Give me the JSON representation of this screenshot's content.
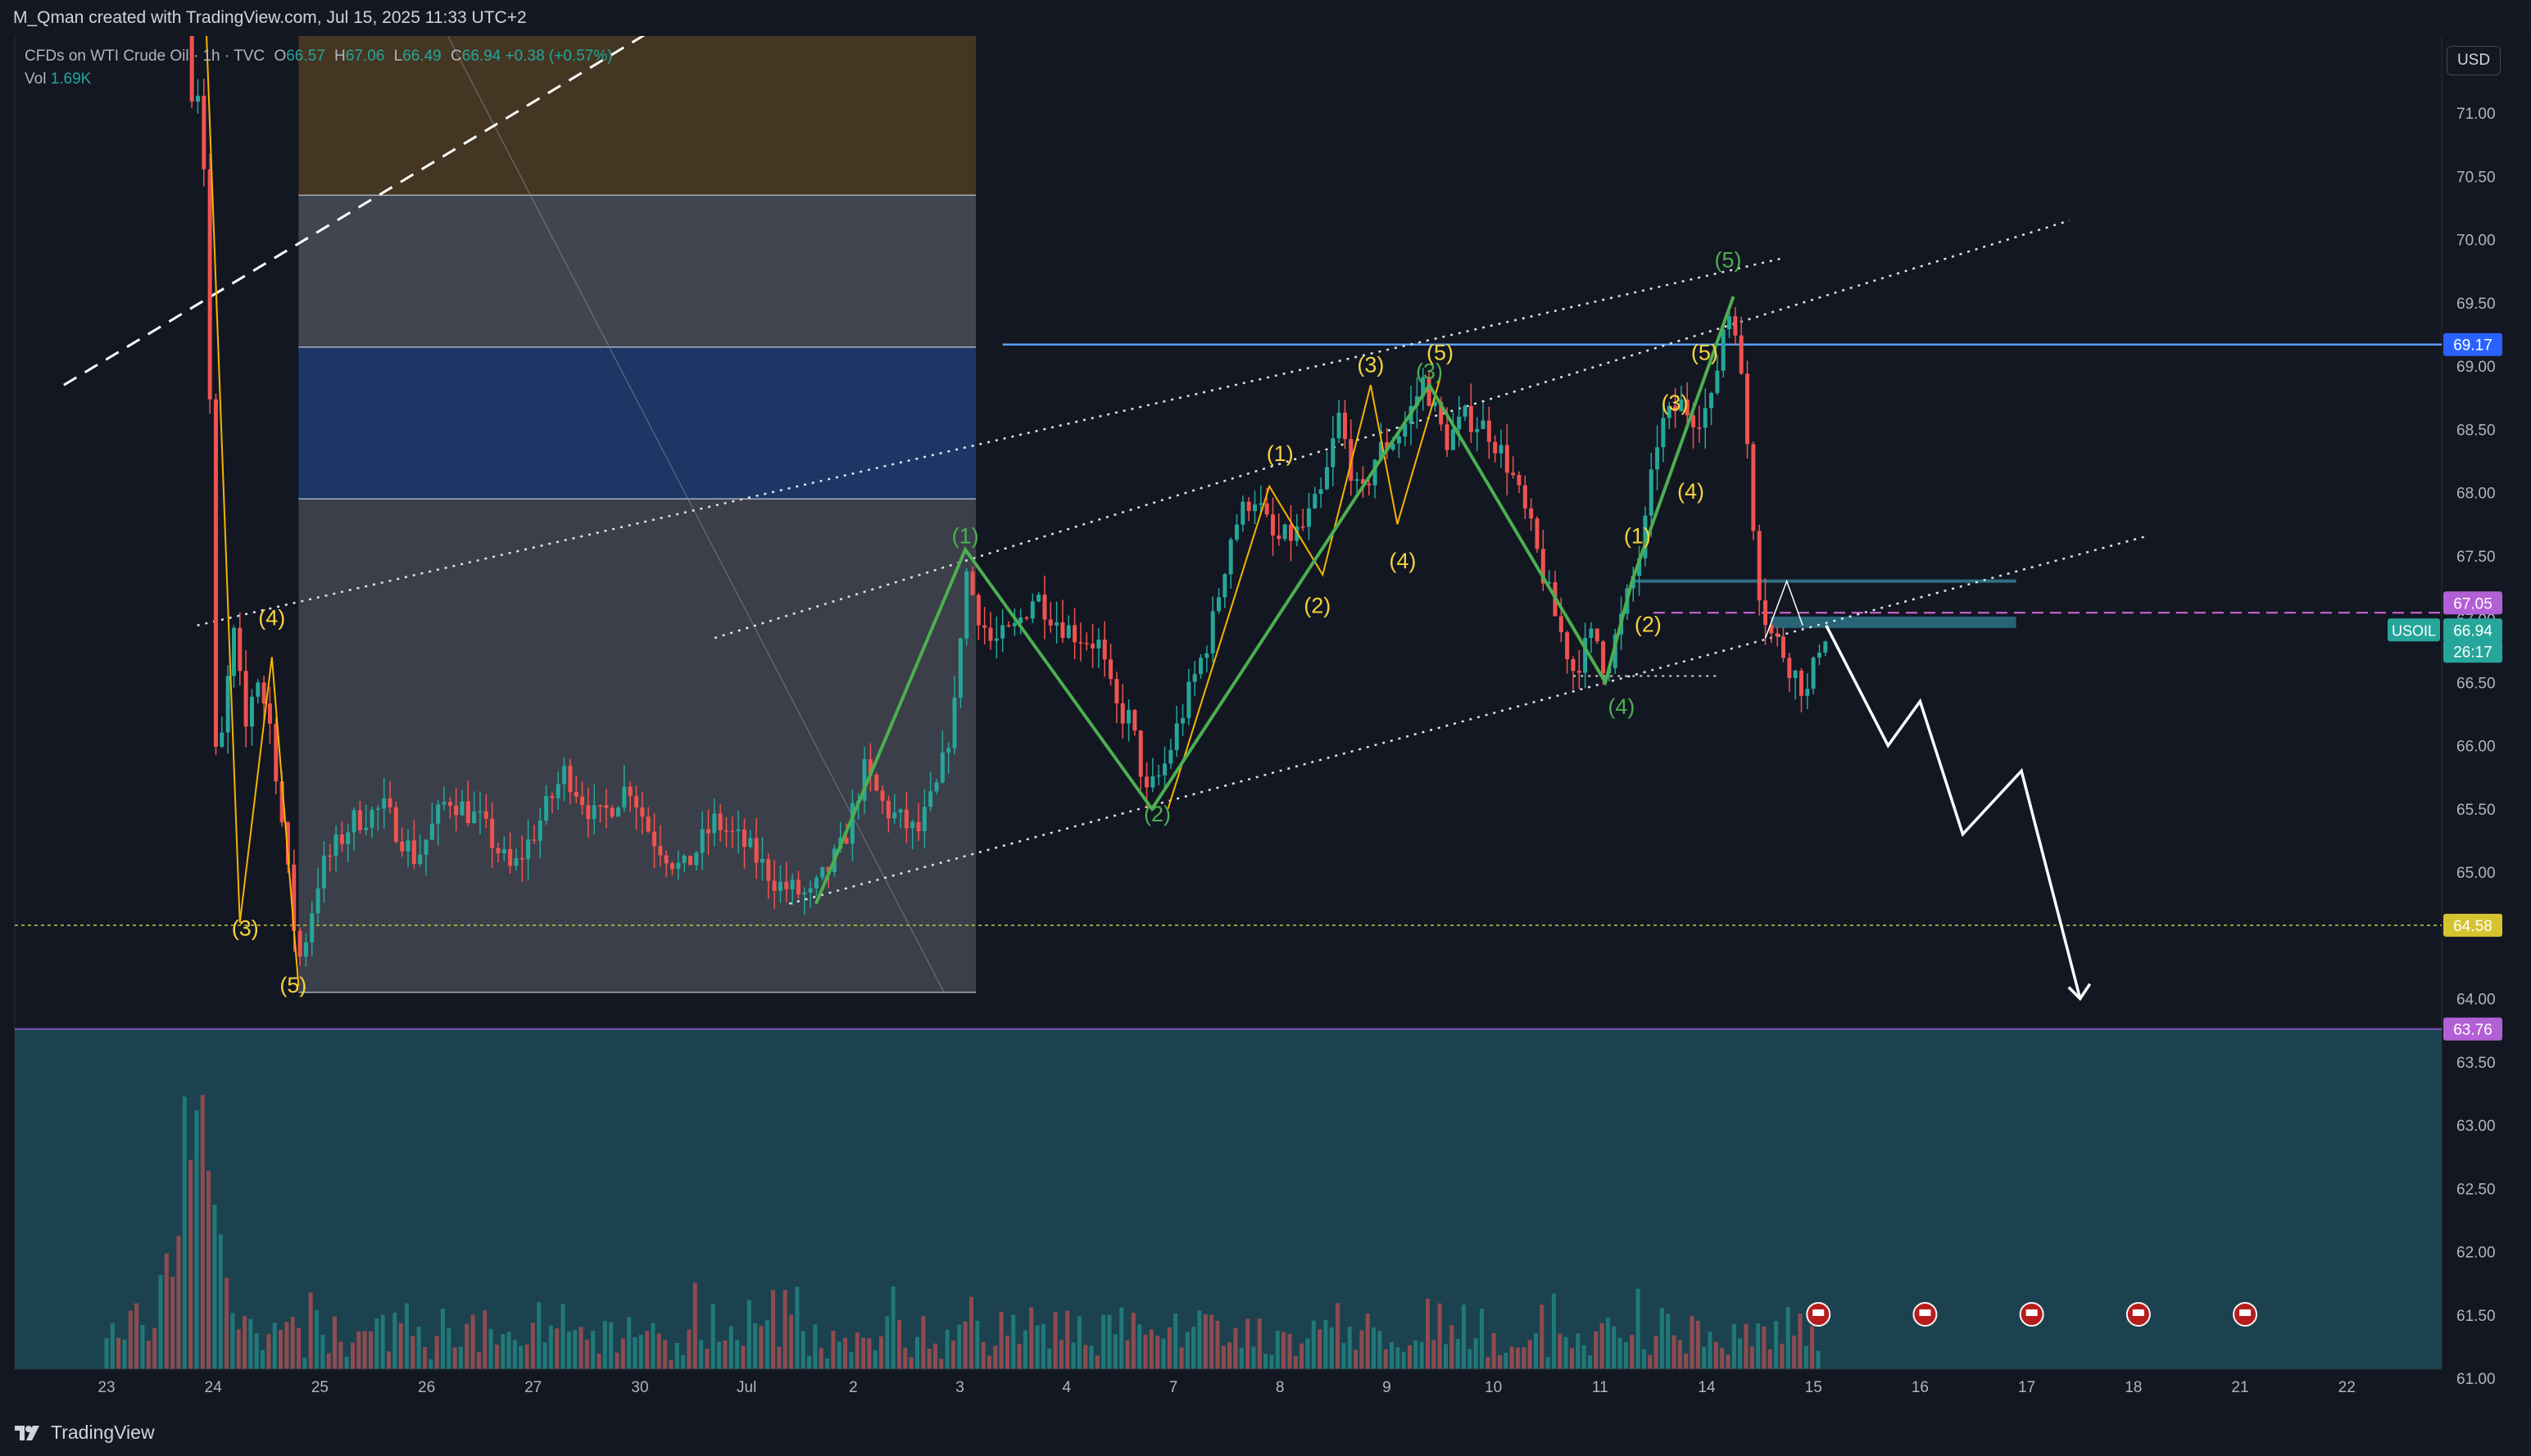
{
  "header": {
    "credit": "M_Qman created with TradingView.com, Jul 15, 2025 11:33 UTC+2"
  },
  "legend": {
    "symbol": "CFDs on WTI Crude Oil · 1h · TVC",
    "open_label": "O",
    "open": "66.57",
    "high_label": "H",
    "high": "67.06",
    "low_label": "L",
    "low": "66.49",
    "close_label": "C",
    "close": "66.94",
    "change": "+0.38 (+0.57%)",
    "vol_label": "Vol",
    "vol": "1.69K"
  },
  "currency_button": "USD",
  "footer": {
    "brand": "TradingView"
  },
  "colors": {
    "background": "#131722",
    "up": "#26a69a",
    "down": "#ef5350",
    "wave_green": "#4caf50",
    "wave_yellow": "#f5d33f",
    "resistance": "#5b9cf6",
    "volume_zone": "#1f4a57",
    "badge_purple": "#b360d6"
  },
  "chart_data": {
    "type": "candlestick",
    "symbol": "USOIL",
    "timeframe": "1h",
    "y_range": [
      60.9,
      71.3
    ],
    "y_ticks": [
      "71.00",
      "70.50",
      "70.00",
      "69.50",
      "69.00",
      "68.50",
      "68.00",
      "67.50",
      "67.00",
      "66.50",
      "66.00",
      "65.50",
      "65.00",
      "64.00",
      "63.50",
      "63.00",
      "62.50",
      "62.00",
      "61.50",
      "61.00"
    ],
    "x_ticks": [
      {
        "label": "23",
        "day": 0
      },
      {
        "label": "24",
        "day": 1
      },
      {
        "label": "25",
        "day": 2
      },
      {
        "label": "26",
        "day": 3
      },
      {
        "label": "27",
        "day": 4
      },
      {
        "label": "30",
        "day": 5
      },
      {
        "label": "Jul",
        "day": 6
      },
      {
        "label": "2",
        "day": 7
      },
      {
        "label": "3",
        "day": 8
      },
      {
        "label": "4",
        "day": 9
      },
      {
        "label": "7",
        "day": 10
      },
      {
        "label": "8",
        "day": 11
      },
      {
        "label": "9",
        "day": 12
      },
      {
        "label": "10",
        "day": 13
      },
      {
        "label": "11",
        "day": 14
      },
      {
        "label": "14",
        "day": 15
      },
      {
        "label": "15",
        "day": 16
      },
      {
        "label": "16",
        "day": 17
      },
      {
        "label": "17",
        "day": 18
      },
      {
        "label": "18",
        "day": 19
      },
      {
        "label": "21",
        "day": 20
      },
      {
        "label": "22",
        "day": 21
      }
    ],
    "price_path": [
      [
        0.8,
        72.0
      ],
      [
        0.92,
        70.5
      ],
      [
        1.0,
        67.6
      ],
      [
        1.03,
        65.6
      ],
      [
        1.12,
        66.4
      ],
      [
        1.2,
        66.9
      ],
      [
        1.3,
        66.1
      ],
      [
        1.4,
        66.6
      ],
      [
        1.55,
        66.1
      ],
      [
        1.75,
        64.6
      ],
      [
        1.82,
        64.3
      ],
      [
        2.0,
        65.0
      ],
      [
        2.3,
        65.4
      ],
      [
        2.6,
        65.5
      ],
      [
        2.9,
        65.1
      ],
      [
        3.2,
        65.6
      ],
      [
        3.5,
        65.4
      ],
      [
        3.8,
        65.0
      ],
      [
        4.0,
        65.3
      ],
      [
        4.3,
        65.8
      ],
      [
        4.6,
        65.4
      ],
      [
        4.9,
        65.7
      ],
      [
        5.1,
        65.3
      ],
      [
        5.4,
        65.0
      ],
      [
        5.7,
        65.4
      ],
      [
        6.0,
        65.2
      ],
      [
        6.3,
        64.9
      ],
      [
        6.6,
        64.8
      ],
      [
        6.9,
        65.2
      ],
      [
        7.1,
        65.8
      ],
      [
        7.3,
        65.5
      ],
      [
        7.6,
        65.3
      ],
      [
        7.8,
        65.7
      ],
      [
        7.95,
        66.3
      ],
      [
        8.05,
        67.4
      ],
      [
        8.15,
        67.1
      ],
      [
        8.3,
        66.8
      ],
      [
        8.5,
        66.9
      ],
      [
        8.7,
        67.2
      ],
      [
        8.9,
        67.0
      ],
      [
        9.05,
        66.9
      ],
      [
        9.3,
        66.8
      ],
      [
        9.45,
        66.3
      ],
      [
        9.6,
        66.2
      ],
      [
        9.75,
        65.6
      ],
      [
        9.9,
        65.8
      ],
      [
        10.1,
        66.3
      ],
      [
        10.35,
        66.9
      ],
      [
        10.55,
        67.7
      ],
      [
        10.75,
        68.0
      ],
      [
        10.95,
        67.6
      ],
      [
        11.2,
        67.7
      ],
      [
        11.4,
        68.0
      ],
      [
        11.55,
        68.6
      ],
      [
        11.75,
        67.9
      ],
      [
        11.9,
        68.3
      ],
      [
        12.15,
        68.5
      ],
      [
        12.35,
        68.9
      ],
      [
        12.55,
        68.4
      ],
      [
        12.75,
        68.6
      ],
      [
        12.95,
        68.5
      ],
      [
        13.15,
        68.2
      ],
      [
        13.35,
        67.7
      ],
      [
        13.55,
        67.1
      ],
      [
        13.75,
        66.6
      ],
      [
        13.95,
        66.9
      ],
      [
        14.05,
        66.6
      ],
      [
        14.2,
        67.0
      ],
      [
        14.4,
        67.6
      ],
      [
        14.55,
        68.5
      ],
      [
        14.75,
        68.7
      ],
      [
        14.9,
        68.6
      ],
      [
        15.05,
        68.7
      ],
      [
        15.15,
        69.3
      ],
      [
        15.25,
        69.5
      ],
      [
        15.38,
        68.4
      ],
      [
        15.48,
        67.3
      ],
      [
        15.58,
        66.9
      ],
      [
        15.68,
        66.8
      ],
      [
        15.8,
        66.6
      ],
      [
        15.95,
        66.4
      ],
      [
        16.05,
        66.8
      ],
      [
        16.12,
        66.9
      ]
    ],
    "volume_peak_day": 0.85,
    "levels": [
      {
        "name": "USOIL",
        "value": 66.94,
        "label": "66.94",
        "color": "#26a69a"
      },
      {
        "name": "level-67",
        "value": 67.05,
        "label": "67.05",
        "color": "#b360d6"
      },
      {
        "name": "countdown",
        "label": "26:17",
        "value": 66.72,
        "color": "#26a69a"
      },
      {
        "name": "resistance",
        "value": 69.17,
        "label": "69.17",
        "color": "#2962ff"
      },
      {
        "name": "support",
        "value": 64.58,
        "label": "64.58",
        "color": "#f5d33f"
      },
      {
        "name": "volume-top",
        "value": 63.76,
        "label": "63.76",
        "color": "#b360d6"
      }
    ],
    "waves_green": [
      {
        "label": "(1)",
        "day": 8.05,
        "price": 67.6
      },
      {
        "label": "(2)",
        "day": 9.85,
        "price": 65.4
      },
      {
        "label": "(3)",
        "day": 12.4,
        "price": 68.9
      },
      {
        "label": "(4)",
        "day": 14.2,
        "price": 66.25
      },
      {
        "label": "(5)",
        "day": 15.2,
        "price": 69.78
      }
    ],
    "waves_yellow": [
      {
        "label": "(3)",
        "day": 1.3,
        "price": 64.5
      },
      {
        "label": "(4)",
        "day": 1.55,
        "price": 66.95
      },
      {
        "label": "(5)",
        "day": 1.75,
        "price": 64.05
      },
      {
        "label": "(1)",
        "day": 11.0,
        "price": 68.25
      },
      {
        "label": "(2)",
        "day": 11.35,
        "price": 67.05
      },
      {
        "label": "(3)",
        "day": 11.85,
        "price": 68.95
      },
      {
        "label": "(4)",
        "day": 12.15,
        "price": 67.4
      },
      {
        "label": "(5)",
        "day": 12.5,
        "price": 69.05
      },
      {
        "label": "(1)",
        "day": 14.35,
        "price": 67.6
      },
      {
        "label": "(2)",
        "day": 14.45,
        "price": 66.9
      },
      {
        "label": "(3)",
        "day": 14.7,
        "price": 68.65
      },
      {
        "label": "(4)",
        "day": 14.85,
        "price": 67.95
      },
      {
        "label": "(5)",
        "day": 14.98,
        "price": 69.05
      }
    ],
    "projection": [
      [
        16.12,
        66.95
      ],
      [
        16.7,
        66.0
      ],
      [
        17.0,
        66.35
      ],
      [
        17.4,
        65.3
      ],
      [
        17.95,
        65.8
      ],
      [
        18.5,
        64.0
      ]
    ],
    "calendar_events": 5
  }
}
